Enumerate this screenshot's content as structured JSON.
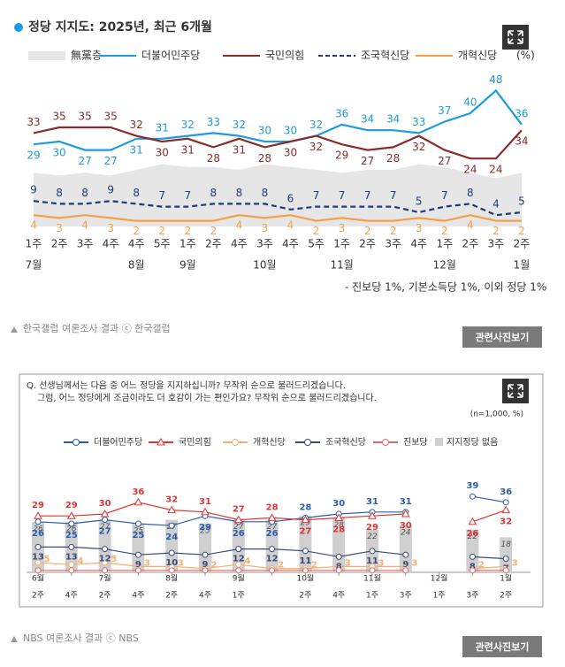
{
  "chart_data": [
    {
      "type": "line",
      "title": "정당 지지도: 2025년, 최근 6개월",
      "categories": [
        "1주",
        "2주",
        "3주",
        "4주",
        "4주",
        "5주",
        "1주",
        "2주",
        "4주",
        "3주",
        "4주",
        "5주",
        "1주",
        "2주",
        "3주",
        "4주",
        "1주",
        "2주",
        "3주",
        "2주"
      ],
      "month_labels": [
        "7월",
        null,
        null,
        null,
        "8월",
        null,
        "9월",
        null,
        null,
        "10월",
        null,
        null,
        "11월",
        null,
        null,
        null,
        "12월",
        null,
        null,
        "1월"
      ],
      "unit": "(%)",
      "series": [
        {
          "name": "無黨층",
          "style": "area",
          "color": "#e6e6e6",
          "values": [
            19,
            18,
            19,
            18,
            20,
            22,
            21,
            21,
            20,
            22,
            21,
            20,
            19,
            20,
            20,
            22,
            21,
            19,
            17,
            19
          ]
        },
        {
          "name": "더불어민주당",
          "style": "line",
          "color": "#1e9be0",
          "values": [
            29,
            30,
            27,
            27,
            31,
            31,
            32,
            33,
            32,
            30,
            30,
            32,
            36,
            34,
            34,
            33,
            37,
            40,
            48,
            36
          ]
        },
        {
          "name": "국민의힘",
          "style": "line",
          "color": "#8b2c2c",
          "values": [
            33,
            35,
            35,
            35,
            32,
            30,
            31,
            28,
            31,
            28,
            30,
            32,
            29,
            27,
            28,
            32,
            27,
            24,
            24,
            34
          ]
        },
        {
          "name": "조국혁신당",
          "style": "line",
          "dash": true,
          "color": "#1f3a78",
          "values": [
            9,
            8,
            8,
            9,
            8,
            7,
            7,
            8,
            8,
            8,
            6,
            7,
            7,
            7,
            7,
            5,
            7,
            8,
            4,
            5
          ]
        },
        {
          "name": "개혁신당",
          "style": "line",
          "color": "#f5a048",
          "values": [
            4,
            3,
            4,
            3,
            2,
            2,
            2,
            2,
            4,
            3,
            4,
            2,
            3,
            2,
            2,
            3,
            2,
            4,
            2,
            2
          ]
        }
      ],
      "note": "- 진보당 1%, 기본소득당 1%, 이외 정당 1%"
    },
    {
      "type": "line",
      "question": [
        "Q. 선생님께서는 다음 중 어느 정당을 지지하십니까? 무작위 순으로 불러드리겠습니다.",
        "그럼, 어느 정당에게 조금이라도 더 호감이 가는 편인가요? 무작위 순으로 불러드리겠습니다."
      ],
      "sample_note": "(n=1,000, %)",
      "categories": [
        "2주",
        "4주",
        "2주",
        "4주",
        "2주",
        "4주",
        "1주",
        null,
        "2주",
        "4주",
        "1주",
        "3주",
        "1주",
        "3주",
        "2주"
      ],
      "month_labels": [
        "6월",
        null,
        "7월",
        null,
        "8월",
        null,
        "9월",
        null,
        "10월",
        null,
        "11월",
        null,
        "12월",
        null,
        "1월"
      ],
      "series": [
        {
          "name": "더불어민주당",
          "style": "line",
          "marker": "circle",
          "color": "#2b5caa",
          "values": [
            26,
            25,
            27,
            25,
            24,
            29,
            26,
            26,
            28,
            30,
            31,
            31,
            null,
            39,
            36
          ]
        },
        {
          "name": "국민의힘",
          "style": "line",
          "marker": "triangle",
          "color": "#e03535",
          "values": [
            29,
            29,
            30,
            36,
            32,
            31,
            27,
            28,
            27,
            28,
            29,
            30,
            null,
            26,
            32
          ]
        },
        {
          "name": "개혁신당",
          "style": "line",
          "marker": "circle",
          "color": "#f5b070",
          "values": [
            5,
            4,
            5,
            3,
            3,
            2,
            4,
            2,
            2,
            3,
            3,
            3,
            null,
            2,
            3
          ]
        },
        {
          "name": "조국혁신당",
          "style": "line",
          "marker": "circle",
          "color": "#3a4a7c",
          "values": [
            13,
            13,
            12,
            9,
            10,
            9,
            12,
            12,
            11,
            8,
            11,
            9,
            null,
            8,
            7
          ]
        },
        {
          "name": "진보당",
          "style": "line",
          "marker": "circle",
          "color": "#e06a6a",
          "values": [
            1,
            1,
            1,
            1,
            1,
            1,
            1,
            1,
            1,
            1,
            1,
            1,
            null,
            1,
            1
          ]
        },
        {
          "name": "지지정당 없음",
          "style": "bar",
          "color": "#cfcfcf",
          "values": [
            26,
            26,
            27,
            25,
            27,
            25,
            27,
            27,
            29,
            28,
            22,
            24,
            null,
            22,
            18
          ]
        }
      ]
    }
  ],
  "captions": [
    "한국갤럽 여론조사 결과 ⓒ 한국갤럽",
    "NBS 여론조사 결과 ⓒ NBS"
  ],
  "photo_buttons": [
    "관련사진보기",
    "관련사진보기"
  ]
}
